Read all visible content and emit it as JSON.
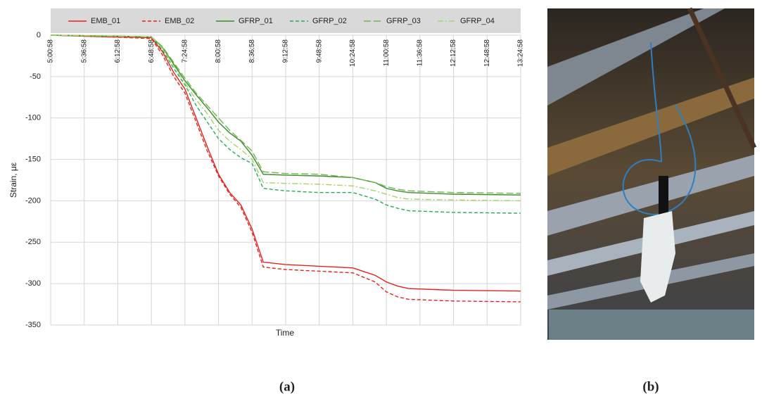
{
  "chart_data": {
    "type": "line",
    "xlabel": "Time",
    "ylabel": "Strain, με",
    "x": [
      "5:00:58",
      "6:00:58",
      "6:48:58",
      "7:00:58",
      "7:12:58",
      "7:24:58",
      "7:36:58",
      "7:48:58",
      "8:00:58",
      "8:12:58",
      "8:24:58",
      "8:36:58",
      "8:48:58",
      "9:12:58",
      "9:48:58",
      "10:24:58",
      "10:48:58",
      "11:00:58",
      "11:12:58",
      "11:24:58",
      "12:12:58",
      "13:24:58"
    ],
    "xlim": [
      "5:00:58",
      "13:24:58"
    ],
    "xticks": [
      "5:00:58",
      "5:36:58",
      "6:12:58",
      "6:48:58",
      "7:24:58",
      "8:00:58",
      "8:36:58",
      "9:12:58",
      "9:48:58",
      "10:24:58",
      "11:00:58",
      "11:36:58",
      "12:12:58",
      "12:48:58",
      "13:24:58"
    ],
    "ylim": [
      -350,
      0
    ],
    "yticks": [
      0,
      -50,
      -100,
      -150,
      -200,
      -250,
      -300,
      -350
    ],
    "grid": true,
    "legend": "top",
    "series": [
      {
        "name": "EMB_01",
        "color": "#e8211d",
        "dash": "solid",
        "values": [
          0,
          -2,
          -3,
          -20,
          -45,
          -65,
          -100,
          -135,
          -168,
          -190,
          -205,
          -234,
          -274,
          -277,
          -279,
          -281,
          -290,
          -298,
          -303,
          -306,
          -308,
          -309
        ]
      },
      {
        "name": "EMB_02",
        "color": "#e8211d",
        "dash": "dashed",
        "values": [
          0,
          -2,
          -4,
          -24,
          -50,
          -70,
          -105,
          -140,
          -170,
          -192,
          -208,
          -238,
          -280,
          -283,
          -285,
          -287,
          -298,
          -310,
          -316,
          -319,
          -321,
          -322
        ]
      },
      {
        "name": "GFRP_01",
        "color": "#3e8a2e",
        "dash": "solid",
        "values": [
          0,
          -1,
          -2,
          -15,
          -35,
          -55,
          -72,
          -88,
          -105,
          -118,
          -128,
          -145,
          -168,
          -169,
          -170,
          -172,
          -178,
          -185,
          -188,
          -190,
          -192,
          -193
        ]
      },
      {
        "name": "GFRP_02",
        "color": "#1fb05a",
        "dash": "dashed",
        "values": [
          0,
          -1,
          -2,
          -18,
          -40,
          -60,
          -85,
          -105,
          -125,
          -138,
          -148,
          -155,
          -185,
          -188,
          -190,
          -190,
          -198,
          -205,
          -209,
          -212,
          -214,
          -215
        ]
      },
      {
        "name": "GFRP_03",
        "color": "#6cb84a",
        "dash": "longdash",
        "values": [
          0,
          -1,
          -2,
          -14,
          -33,
          -52,
          -70,
          -85,
          -100,
          -115,
          -127,
          -140,
          -165,
          -167,
          -168,
          -172,
          -178,
          -183,
          -186,
          -188,
          -190,
          -191
        ]
      },
      {
        "name": "GFRP_04",
        "color": "#a9d36b",
        "dash": "dashdot",
        "values": [
          0,
          -1,
          -2,
          -16,
          -37,
          -58,
          -78,
          -95,
          -115,
          -128,
          -138,
          -150,
          -178,
          -179,
          -180,
          -182,
          -188,
          -192,
          -196,
          -198,
          -199,
          -200
        ]
      }
    ]
  },
  "captions": [
    "(a)",
    "(b)"
  ]
}
